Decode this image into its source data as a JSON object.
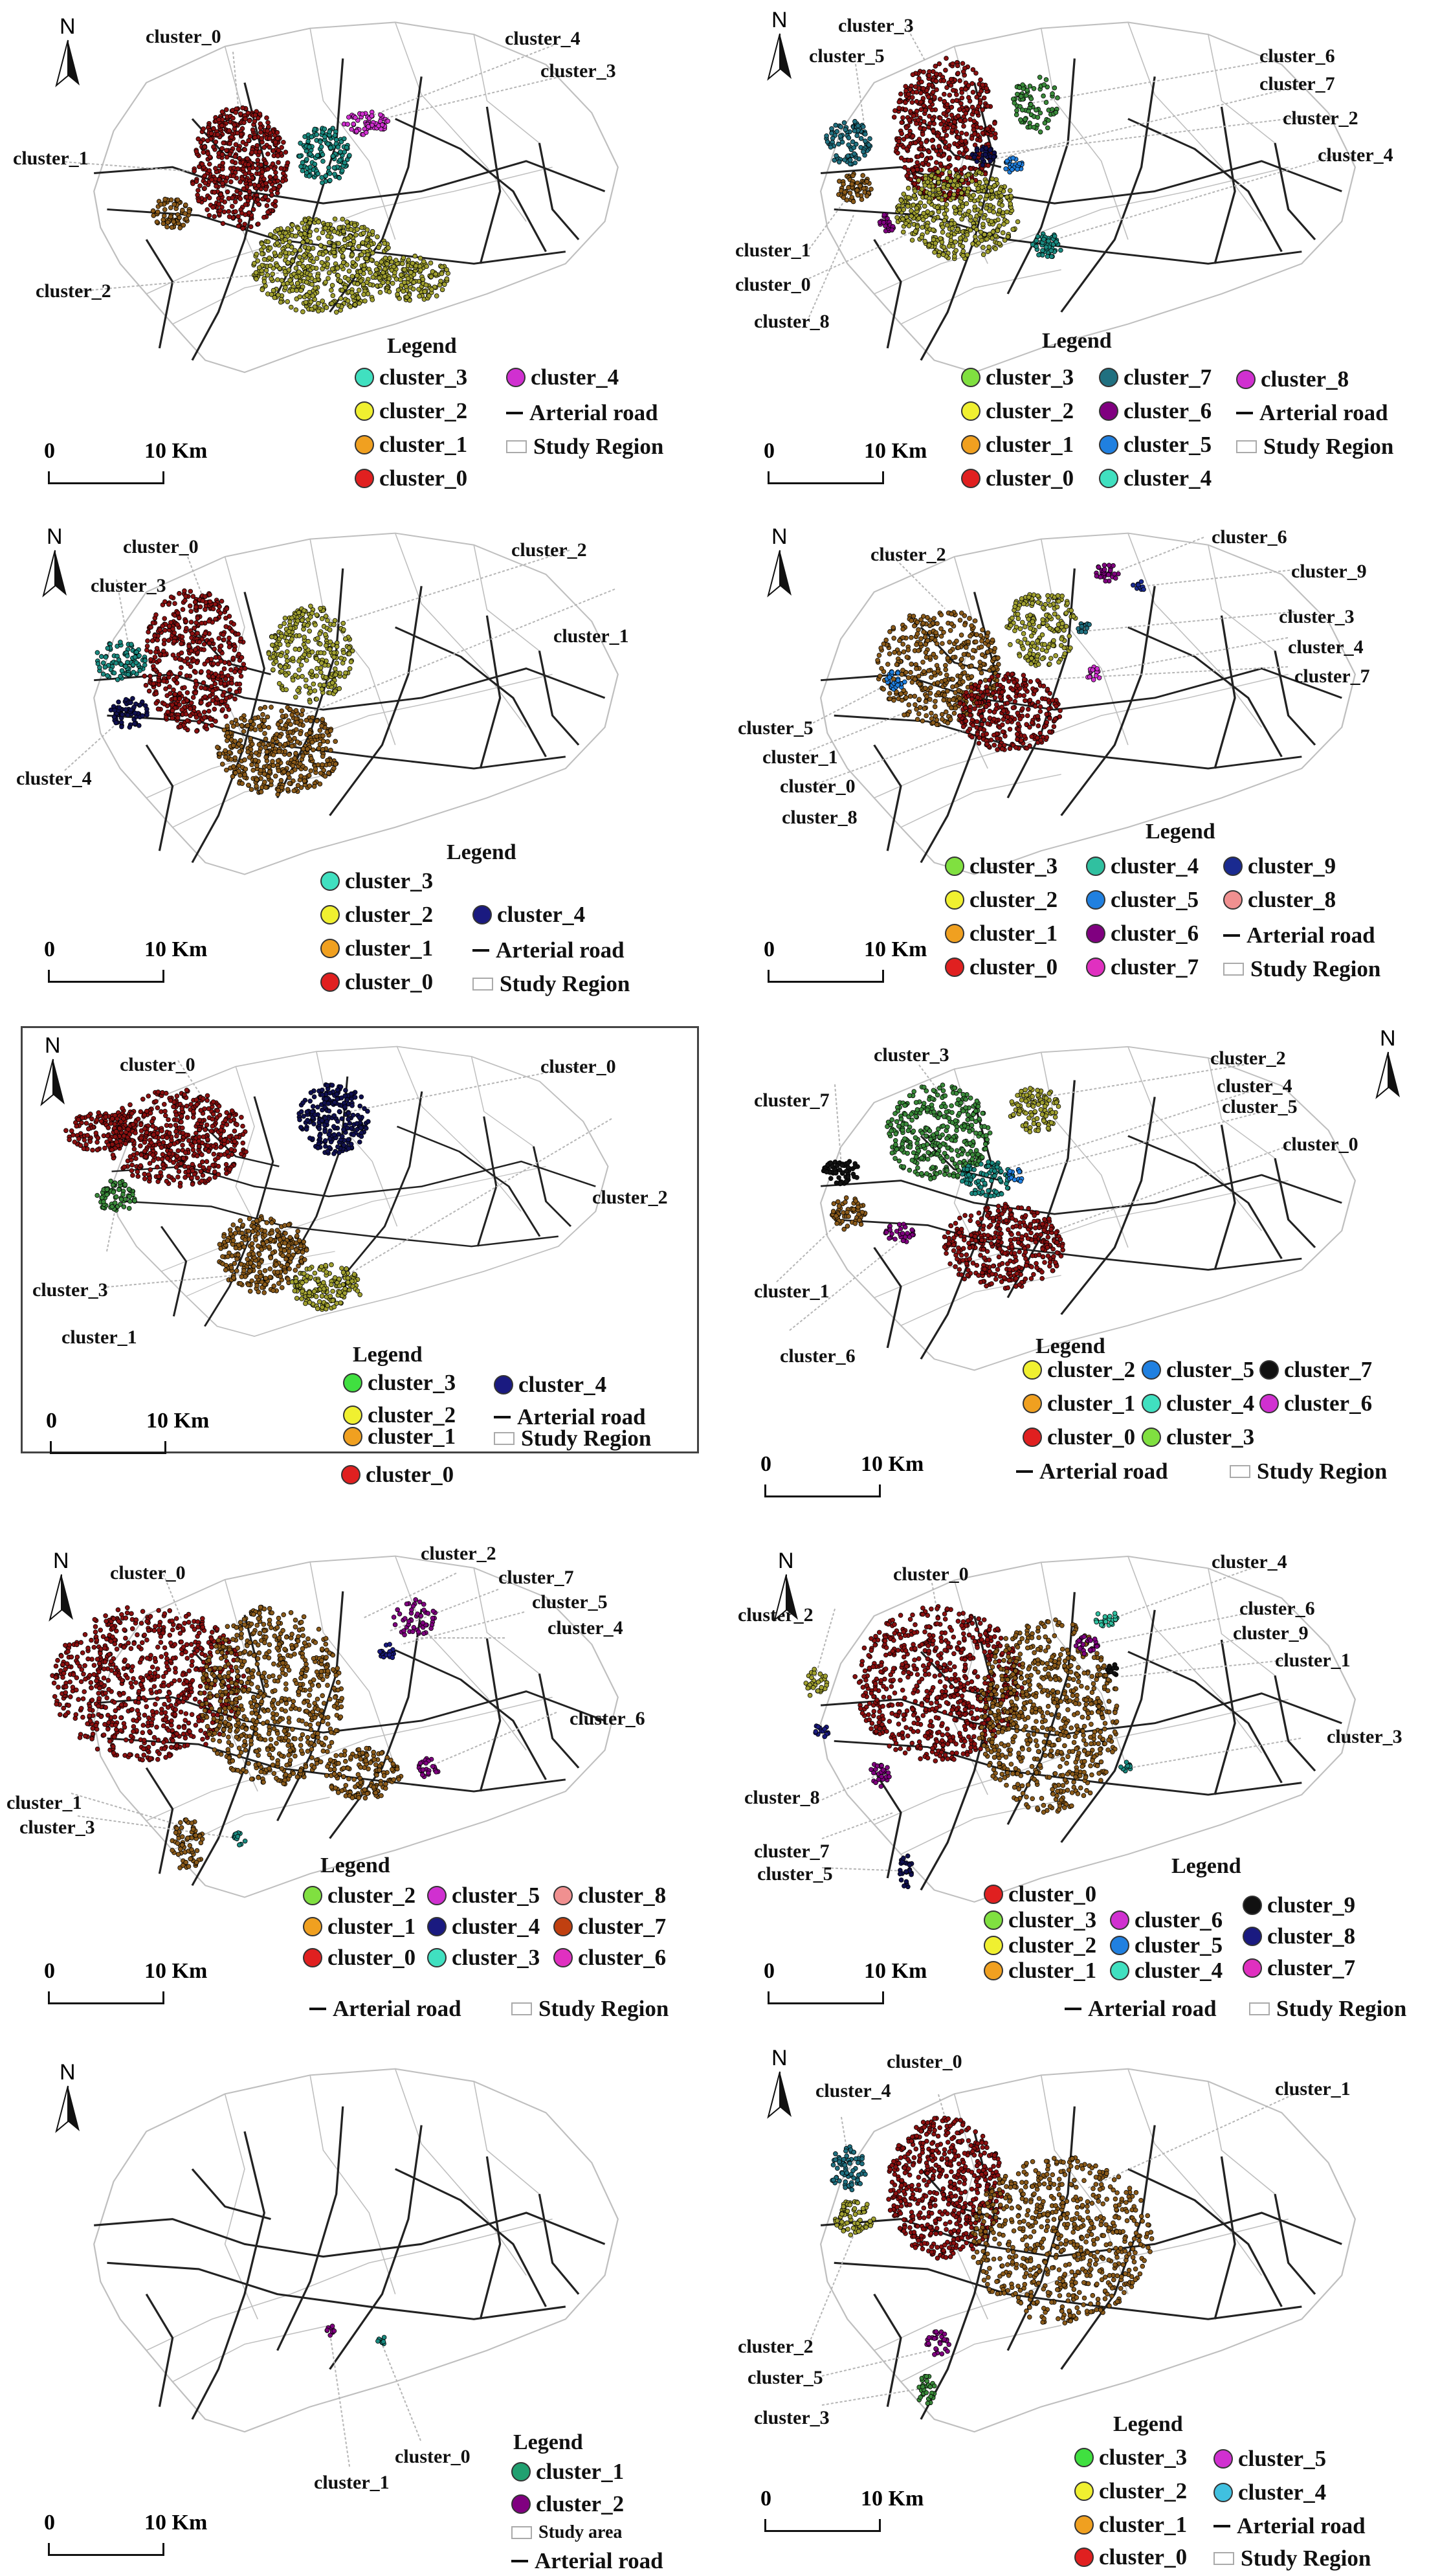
{
  "colors": {
    "cluster_0": "#e02020",
    "cluster_1": "#f0a020",
    "cluster_2": "#f0f030",
    "cluster_3_cyan": "#40e0c0",
    "cluster_3_green": "#80e040",
    "cluster_4_magenta": "#d030d0",
    "cluster_4_navy": "#1a1a80",
    "cluster_4_teal": "#30c0a0",
    "cluster_5": "#2080e0",
    "cluster_6": "#800080",
    "cluster_7_teal": "#207080",
    "cluster_7_black": "#111111",
    "cluster_8_pink": "#f09090",
    "cluster_8_navy": "#1a1a80",
    "cluster_9_navy": "#1a2a90",
    "cluster_9_black": "#111111",
    "pt_red": "#8a1010",
    "pt_olive": "#a0a030",
    "pt_brown": "#8a5a1a",
    "pt_teal": "#1a8a80",
    "pt_navy": "#101050",
    "pt_green": "#3a8a3a",
    "road": "#222222",
    "boundary": "#bfbfbf"
  },
  "common": {
    "north": "N",
    "scale_zero": "0",
    "scale_ten": "10 Km",
    "legend_title": "Legend",
    "arterial_road": "Arterial road",
    "study_region": "Study Region",
    "study_area": "Study area"
  },
  "panels": [
    {
      "id": "p1",
      "callouts": [
        "cluster_0",
        "cluster_4",
        "cluster_3",
        "cluster_1",
        "cluster_2"
      ],
      "legend": [
        "cluster_3",
        "cluster_4",
        "cluster_2",
        "cluster_1",
        "cluster_0"
      ]
    },
    {
      "id": "p2",
      "callouts": [
        "cluster_3",
        "cluster_5",
        "cluster_6",
        "cluster_7",
        "cluster_2",
        "cluster_4",
        "cluster_1",
        "cluster_0",
        "cluster_8"
      ],
      "legend": [
        "cluster_3",
        "cluster_7",
        "cluster_8",
        "cluster_2",
        "cluster_6",
        "cluster_1",
        "cluster_5",
        "cluster_0",
        "cluster_4"
      ]
    },
    {
      "id": "p3",
      "callouts": [
        "cluster_0",
        "cluster_2",
        "cluster_3",
        "cluster_1",
        "cluster_4"
      ],
      "legend": [
        "cluster_3",
        "cluster_2",
        "cluster_4",
        "cluster_1",
        "cluster_0"
      ]
    },
    {
      "id": "p4",
      "callouts": [
        "cluster_6",
        "cluster_2",
        "cluster_9",
        "cluster_3",
        "cluster_4",
        "cluster_7",
        "cluster_5",
        "cluster_1",
        "cluster_0",
        "cluster_8"
      ],
      "legend": [
        "cluster_3",
        "cluster_4",
        "cluster_9",
        "cluster_2",
        "cluster_5",
        "cluster_8",
        "cluster_1",
        "cluster_6",
        "cluster_0",
        "cluster_7"
      ]
    },
    {
      "id": "p5",
      "callouts": [
        "cluster_0",
        "cluster_0",
        "cluster_2",
        "cluster_3",
        "cluster_1"
      ],
      "legend": [
        "cluster_3",
        "cluster_4",
        "cluster_2",
        "cluster_1",
        "cluster_0"
      ]
    },
    {
      "id": "p6",
      "callouts": [
        "cluster_3",
        "cluster_2",
        "cluster_7",
        "cluster_4",
        "cluster_5",
        "cluster_0",
        "cluster_1",
        "cluster_6"
      ],
      "legend": [
        "cluster_2",
        "cluster_5",
        "cluster_7",
        "cluster_1",
        "cluster_4",
        "cluster_6",
        "cluster_0",
        "cluster_3"
      ]
    },
    {
      "id": "p7",
      "callouts": [
        "cluster_0",
        "cluster_2",
        "cluster_7",
        "cluster_5",
        "cluster_4",
        "cluster_6",
        "cluster_1",
        "cluster_3"
      ],
      "legend": [
        "cluster_2",
        "cluster_5",
        "cluster_8",
        "cluster_1",
        "cluster_4",
        "cluster_7",
        "cluster_0",
        "cluster_3",
        "cluster_6"
      ]
    },
    {
      "id": "p8",
      "callouts": [
        "cluster_0",
        "cluster_4",
        "cluster_2",
        "cluster_6",
        "cluster_9",
        "cluster_1",
        "cluster_3",
        "cluster_8",
        "cluster_7",
        "cluster_5"
      ],
      "legend": [
        "cluster_0",
        "cluster_3",
        "cluster_6",
        "cluster_9",
        "cluster_2",
        "cluster_5",
        "cluster_8",
        "cluster_1",
        "cluster_4",
        "cluster_7"
      ]
    },
    {
      "id": "p9",
      "callouts": [
        "cluster_0",
        "cluster_1"
      ],
      "legend": [
        "cluster_1",
        "cluster_2"
      ]
    },
    {
      "id": "p10",
      "callouts": [
        "cluster_0",
        "cluster_4",
        "cluster_1",
        "cluster_2",
        "cluster_5",
        "cluster_3"
      ],
      "legend": [
        "cluster_3",
        "cluster_5",
        "cluster_2",
        "cluster_4",
        "cluster_1",
        "cluster_0"
      ]
    }
  ]
}
